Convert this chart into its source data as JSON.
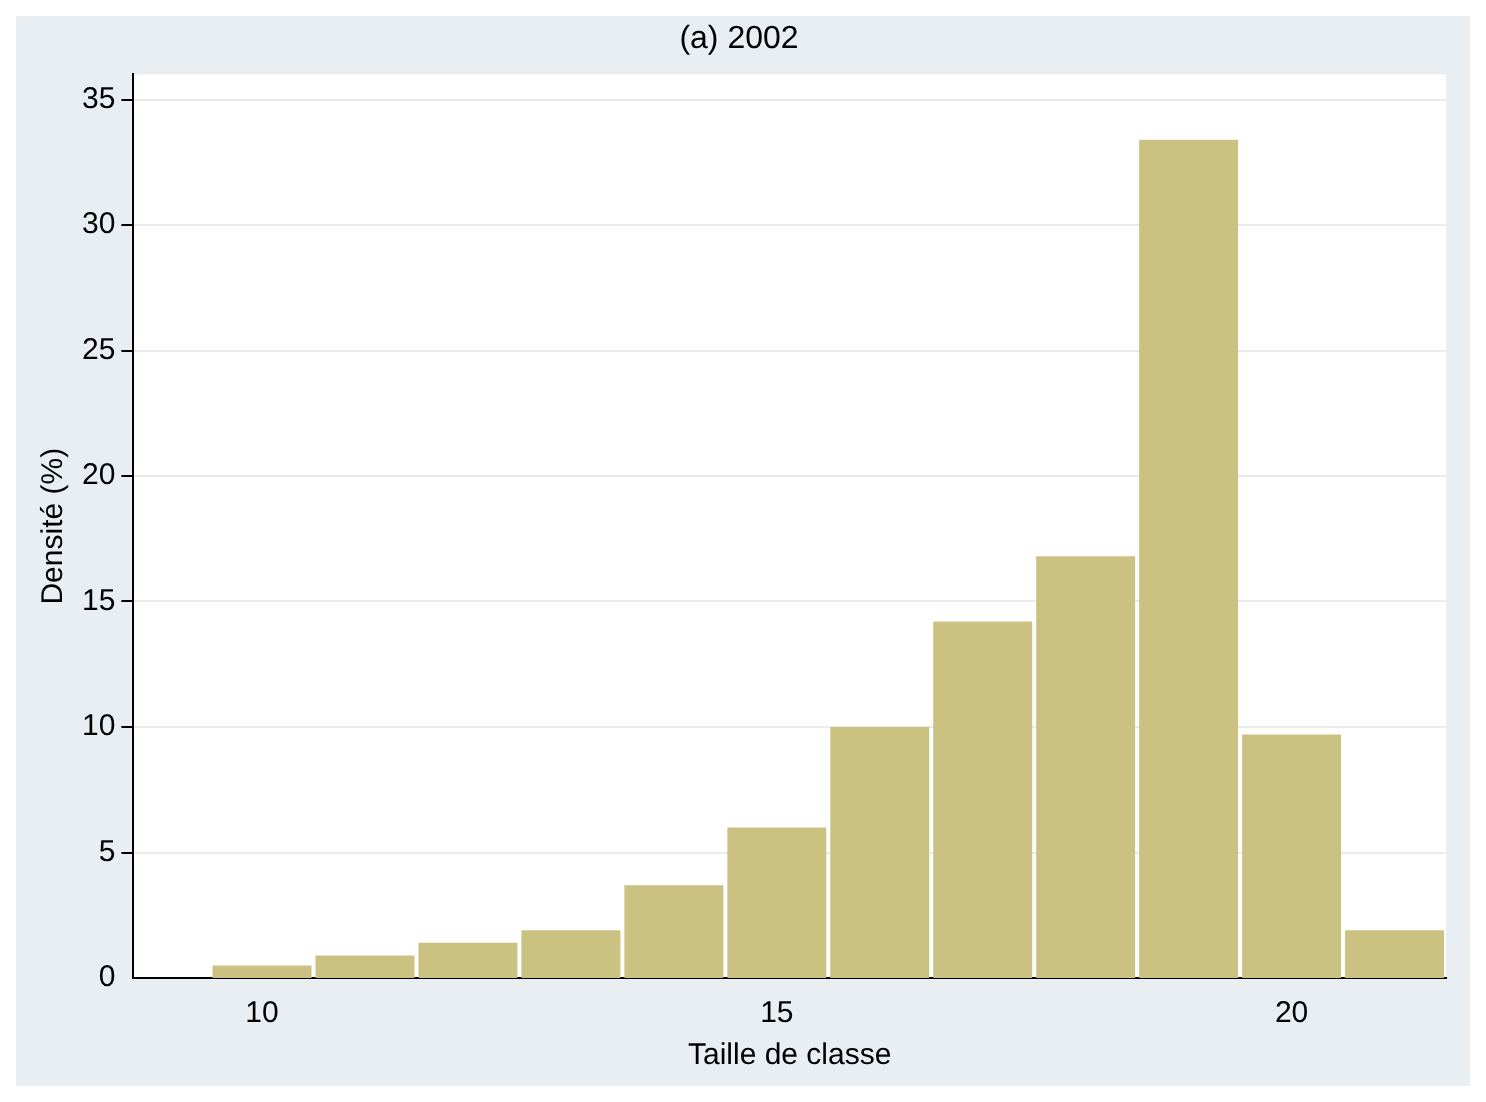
{
  "chart_data": {
    "type": "histogram",
    "title": "(a) 2002",
    "xlabel": "Taille de classe",
    "ylabel": "Densité (%)",
    "bins": [
      9.5,
      10.5,
      11.5,
      12.5,
      13.5,
      14.5,
      15.5,
      16.5,
      17.5,
      18.5,
      19.5,
      20.5,
      21.5
    ],
    "values": [
      0.5,
      0.9,
      1.4,
      1.9,
      3.7,
      6.0,
      10.0,
      14.2,
      16.8,
      33.4,
      9.7,
      1.9
    ],
    "color": "#cbc282",
    "xlim": [
      8.75,
      21.5
    ],
    "xticks": [
      10,
      15,
      20
    ],
    "ylim": [
      0,
      36
    ],
    "yticks": [
      0,
      5,
      10,
      15,
      20,
      25,
      30,
      35
    ],
    "grid": "y"
  }
}
